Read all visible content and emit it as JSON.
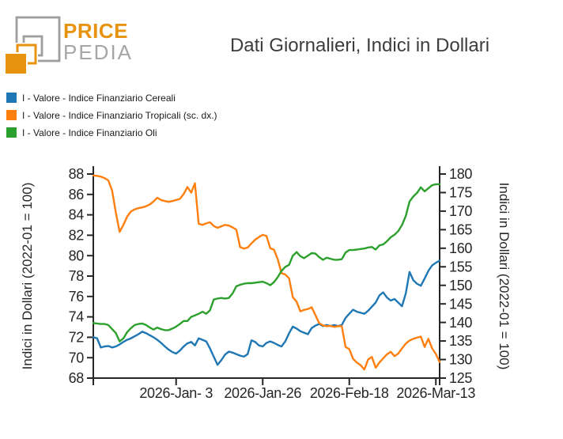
{
  "logo": {
    "brand_top": "PRICE",
    "brand_bottom": "PEDIA",
    "orange": "#e8930f",
    "gray": "#9e9e9e"
  },
  "title": "Dati Giornalieri, Indici in Dollari",
  "legend": [
    {
      "id": "cereali",
      "label": "I - Valore - Indice Finanziario Cereali",
      "color": "#1f77b4"
    },
    {
      "id": "tropicali",
      "label": "I - Valore - Indice Finanziario Tropicali (sc. dx.)",
      "color": "#ff7f0e"
    },
    {
      "id": "oli",
      "label": "I - Valore - Indice Finanziario Oli",
      "color": "#2ca02c"
    }
  ],
  "chart_data": {
    "type": "line",
    "title": "Dati Giornalieri, Indici in Dollari",
    "grid": false,
    "legend_position": "upper-left-outside",
    "axis_color": "#262626",
    "x_range_days": [
      0,
      92
    ],
    "x_ticks": [
      {
        "day": 22,
        "label": "2026-Jan- 3"
      },
      {
        "day": 45,
        "label": "2026-Jan-26"
      },
      {
        "day": 68,
        "label": "2026-Feb-18"
      },
      {
        "day": 91,
        "label": "2026-Mar-13"
      }
    ],
    "left_axis": {
      "label": "Indici in Dollari (2022-01 = 100)",
      "min": 68,
      "max": 88,
      "tick_step": 2
    },
    "right_axis": {
      "label": "Indici in Dollari (2022-01 = 100)",
      "min": 125,
      "max": 180,
      "tick_step": 5
    },
    "series": [
      {
        "id": "cereali",
        "name": "I - Valore - Indice Finanziario Cereali",
        "axis": "left",
        "color": "#1f77b4",
        "values": [
          72.0,
          71.9,
          71.0,
          71.1,
          71.15,
          71.0,
          71.1,
          71.3,
          71.55,
          71.75,
          71.9,
          72.1,
          72.3,
          72.55,
          72.4,
          72.2,
          72.0,
          71.75,
          71.45,
          71.1,
          70.8,
          70.55,
          70.4,
          70.7,
          71.1,
          71.4,
          71.55,
          71.2,
          71.9,
          71.75,
          71.6,
          70.9,
          70.1,
          69.3,
          69.75,
          70.3,
          70.6,
          70.5,
          70.35,
          70.2,
          70.1,
          70.35,
          71.7,
          71.55,
          71.2,
          71.1,
          71.45,
          71.6,
          71.45,
          71.25,
          71.1,
          71.6,
          72.4,
          73.05,
          72.85,
          72.6,
          72.45,
          72.3,
          72.9,
          73.15,
          73.3,
          73.1,
          73.2,
          73.1,
          73.2,
          73.1,
          73.2,
          73.9,
          74.3,
          74.7,
          74.5,
          74.4,
          74.3,
          74.6,
          75.0,
          75.4,
          76.1,
          76.4,
          75.9,
          75.6,
          75.75,
          75.4,
          75.05,
          76.3,
          78.4,
          77.6,
          77.25,
          77.05,
          77.75,
          78.5,
          79.05,
          79.3,
          79.5
        ]
      },
      {
        "id": "tropicali",
        "name": "I - Valore - Indice Finanziario Tropicali (sc. dx.)",
        "axis": "right",
        "color": "#ff7f0e",
        "values": [
          179.6,
          179.5,
          179.3,
          178.9,
          178.3,
          175.5,
          169.5,
          164.4,
          166.3,
          168.5,
          169.9,
          170.5,
          170.8,
          171.0,
          171.3,
          171.8,
          172.6,
          173.6,
          173.0,
          172.7,
          172.5,
          172.7,
          173.0,
          173.3,
          174.6,
          176.5,
          175.0,
          177.5,
          166.6,
          166.3,
          166.7,
          167.0,
          166.0,
          165.5,
          165.9,
          166.3,
          166.1,
          165.6,
          165.0,
          160.3,
          159.9,
          160.2,
          161.3,
          162.3,
          163.0,
          163.6,
          163.3,
          160.0,
          159.6,
          157.0,
          153.3,
          152.9,
          151.9,
          146.8,
          145.6,
          143.0,
          143.4,
          143.6,
          144.1,
          142.0,
          139.8,
          139.2,
          139.0,
          139.1,
          138.8,
          139.0,
          139.0,
          133.4,
          132.8,
          130.2,
          129.2,
          128.5,
          127.3,
          130.0,
          130.7,
          127.8,
          129.2,
          130.3,
          131.4,
          132.1,
          130.9,
          131.6,
          133.0,
          134.3,
          135.1,
          135.6,
          135.9,
          136.2,
          133.4,
          135.6,
          133.0,
          131.5,
          129.3
        ]
      },
      {
        "id": "oli",
        "name": "I - Valore - Indice Finanziario Oli",
        "axis": "left",
        "color": "#2ca02c",
        "values": [
          73.4,
          73.35,
          73.3,
          73.3,
          73.2,
          72.8,
          72.4,
          71.6,
          71.9,
          72.5,
          72.9,
          73.2,
          73.3,
          73.35,
          73.2,
          72.95,
          72.75,
          72.95,
          72.8,
          72.7,
          72.7,
          72.85,
          73.05,
          73.3,
          73.6,
          73.6,
          74.0,
          74.15,
          74.3,
          74.5,
          74.3,
          74.65,
          75.7,
          75.8,
          75.85,
          75.8,
          75.85,
          76.3,
          77.0,
          77.15,
          77.25,
          77.3,
          77.3,
          77.35,
          77.4,
          77.45,
          77.3,
          77.1,
          77.4,
          77.9,
          78.5,
          78.9,
          79.1,
          80.0,
          80.35,
          79.95,
          79.75,
          80.0,
          80.25,
          80.2,
          79.85,
          79.6,
          79.8,
          79.7,
          79.6,
          79.6,
          79.65,
          80.3,
          80.55,
          80.55,
          80.6,
          80.65,
          80.7,
          80.8,
          80.85,
          80.6,
          81.0,
          81.1,
          81.4,
          81.8,
          82.05,
          82.4,
          83.0,
          83.9,
          85.3,
          85.8,
          86.15,
          86.7,
          86.3,
          86.6,
          86.9,
          87.0,
          87.0
        ]
      }
    ]
  }
}
